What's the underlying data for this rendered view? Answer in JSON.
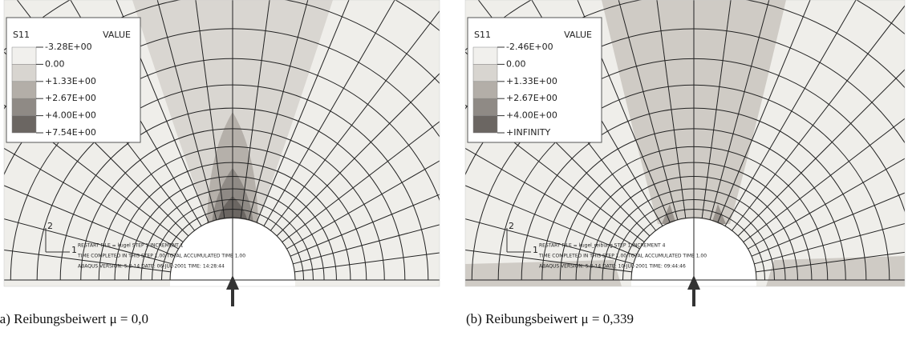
{
  "panels": [
    {
      "legend": {
        "variable": "S11",
        "header": "VALUE",
        "entries": [
          "-3.28E+00",
          "0.00",
          "+1.33E+00",
          "+2.67E+00",
          "+4.00E+00",
          "+7.54E+00"
        ]
      },
      "info": [
        "RESTART FILE = kugel  STEP 1  INCREMENT 1",
        "TIME COMPLETED IN THIS STEP   1.00    TOTAL ACCUMULATED TIME   1.00",
        "ABAQUS VERSION: 5.8-14   DATE: 06-JUL-2001   TIME: 14:28:44"
      ],
      "triad": [
        "2",
        "1"
      ],
      "caption": "(a) Reibungsbeiwert μ = 0,0"
    },
    {
      "legend": {
        "variable": "S11",
        "header": "VALUE",
        "entries": [
          "-2.46E+00",
          "0.00",
          "+1.33E+00",
          "+2.67E+00",
          "+4.00E+00",
          "+INFINITY"
        ]
      },
      "info": [
        "RESTART FILE = kugel_reibung  STEP 1  INCREMENT 4",
        "TIME COMPLETED IN THIS STEP   1.00    TOTAL ACCUMULATED TIME   1.00",
        "ABAQUS VERSION: 5.8-14   DATE: 10-JUL-2001   TIME: 09:44:46"
      ],
      "triad": [
        "2",
        "1"
      ],
      "caption": "(b) Reibungsbeiwert μ = 0,339"
    }
  ]
}
